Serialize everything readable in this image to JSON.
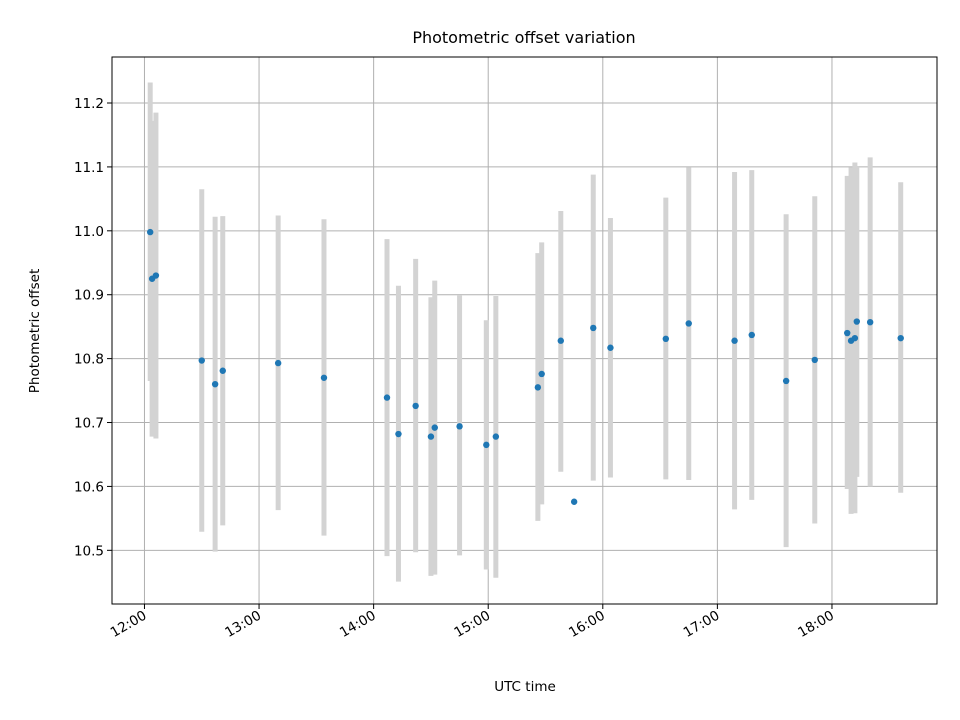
{
  "chart_data": {
    "type": "scatter",
    "title": "Photometric offset variation",
    "xlabel": "UTC time",
    "ylabel": "Photometric offset",
    "x_tick_labels": [
      "12:00",
      "13:00",
      "14:00",
      "15:00",
      "16:00",
      "17:00",
      "18:00"
    ],
    "y_tick_labels": [
      "10.5",
      "10.6",
      "10.7",
      "10.8",
      "10.9",
      "11.0",
      "11.1",
      "11.2"
    ],
    "y_ticks": [
      10.5,
      10.6,
      10.7,
      10.8,
      10.9,
      11.0,
      11.1,
      11.2
    ],
    "x_ticks": [
      "12:00",
      "13:00",
      "14:00",
      "15:00",
      "16:00",
      "17:00",
      "18:00"
    ],
    "xlim": [
      "11:43",
      "18:55"
    ],
    "ylim": [
      10.416,
      11.272
    ],
    "grid": true,
    "point_color": "#1f77b4",
    "errorbar_color": "#d3d3d3",
    "series": [
      {
        "points": [
          {
            "x": "12:03",
            "y": 10.998,
            "lo": 10.765,
            "hi": 11.232
          },
          {
            "x": "12:04",
            "y": 10.925,
            "lo": 10.678,
            "hi": 11.172
          },
          {
            "x": "12:06",
            "y": 10.93,
            "lo": 10.675,
            "hi": 11.185
          },
          {
            "x": "12:30",
            "y": 10.797,
            "lo": 10.529,
            "hi": 11.065
          },
          {
            "x": "12:37",
            "y": 10.76,
            "lo": 10.498,
            "hi": 11.022
          },
          {
            "x": "12:41",
            "y": 10.781,
            "lo": 10.539,
            "hi": 11.023
          },
          {
            "x": "13:10",
            "y": 10.793,
            "lo": 10.563,
            "hi": 11.024
          },
          {
            "x": "13:34",
            "y": 10.77,
            "lo": 10.523,
            "hi": 11.018
          },
          {
            "x": "14:07",
            "y": 10.739,
            "lo": 10.491,
            "hi": 10.987
          },
          {
            "x": "14:13",
            "y": 10.682,
            "lo": 10.451,
            "hi": 10.914
          },
          {
            "x": "14:22",
            "y": 10.726,
            "lo": 10.497,
            "hi": 10.956
          },
          {
            "x": "14:30",
            "y": 10.678,
            "lo": 10.46,
            "hi": 10.896
          },
          {
            "x": "14:32",
            "y": 10.692,
            "lo": 10.462,
            "hi": 10.922
          },
          {
            "x": "14:45",
            "y": 10.694,
            "lo": 10.492,
            "hi": 10.899
          },
          {
            "x": "14:59",
            "y": 10.665,
            "lo": 10.47,
            "hi": 10.86
          },
          {
            "x": "15:04",
            "y": 10.678,
            "lo": 10.457,
            "hi": 10.898
          },
          {
            "x": "15:26",
            "y": 10.755,
            "lo": 10.546,
            "hi": 10.965
          },
          {
            "x": "15:28",
            "y": 10.776,
            "lo": 10.572,
            "hi": 10.982
          },
          {
            "x": "15:38",
            "y": 10.828,
            "lo": 10.623,
            "hi": 11.031
          },
          {
            "x": "15:45",
            "y": 10.576,
            "lo": 10.576,
            "hi": 10.576
          },
          {
            "x": "15:55",
            "y": 10.848,
            "lo": 10.609,
            "hi": 11.088
          },
          {
            "x": "16:04",
            "y": 10.817,
            "lo": 10.614,
            "hi": 11.02
          },
          {
            "x": "16:33",
            "y": 10.831,
            "lo": 10.611,
            "hi": 11.052
          },
          {
            "x": "16:45",
            "y": 10.855,
            "lo": 10.61,
            "hi": 11.099
          },
          {
            "x": "17:09",
            "y": 10.828,
            "lo": 10.564,
            "hi": 11.092
          },
          {
            "x": "17:18",
            "y": 10.837,
            "lo": 10.579,
            "hi": 11.095
          },
          {
            "x": "17:36",
            "y": 10.765,
            "lo": 10.505,
            "hi": 11.026
          },
          {
            "x": "17:51",
            "y": 10.798,
            "lo": 10.542,
            "hi": 11.054
          },
          {
            "x": "18:08",
            "y": 10.84,
            "lo": 10.596,
            "hi": 11.086
          },
          {
            "x": "18:10",
            "y": 10.828,
            "lo": 10.557,
            "hi": 11.099
          },
          {
            "x": "18:12",
            "y": 10.832,
            "lo": 10.558,
            "hi": 11.107
          },
          {
            "x": "18:13",
            "y": 10.858,
            "lo": 10.615,
            "hi": 11.1
          },
          {
            "x": "18:20",
            "y": 10.857,
            "lo": 10.6,
            "hi": 11.115
          },
          {
            "x": "18:36",
            "y": 10.832,
            "lo": 10.59,
            "hi": 11.076
          }
        ]
      }
    ]
  }
}
